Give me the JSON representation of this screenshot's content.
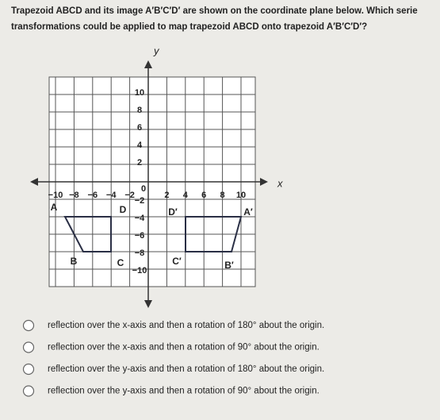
{
  "question": {
    "lines": [
      "Trapezoid ABCD and its image A′B′C′D′ are shown on the coordinate plane below. Which serie",
      "transformations could be applied to map trapezoid ABCD onto trapezoid A′B′C′D′?"
    ]
  },
  "graph": {
    "axis_labels": {
      "x": "x",
      "y": "y"
    },
    "origin_label": "0",
    "x_tick_labels": [
      "−10",
      "−8",
      "−6",
      "−4",
      "−2",
      "2",
      "4",
      "6",
      "8",
      "10"
    ],
    "y_tick_labels": [
      "10",
      "8",
      "6",
      "4",
      "2",
      "−2",
      "−4",
      "−6",
      "−8",
      "−10"
    ],
    "vertex_labels": {
      "A": "A",
      "B": "B",
      "C": "C",
      "D": "D",
      "A_prime": "A′",
      "B_prime": "B′",
      "C_prime": "C′",
      "D_prime": "D′"
    }
  },
  "options": [
    "reflection over the x-axis and then a rotation of 180° about the origin.",
    "reflection over the x-axis and then a rotation of 90° about the origin.",
    "reflection over the y-axis and then a rotation of 180° about the origin.",
    "reflection over the y-axis and then a rotation of 90° about the origin."
  ]
}
